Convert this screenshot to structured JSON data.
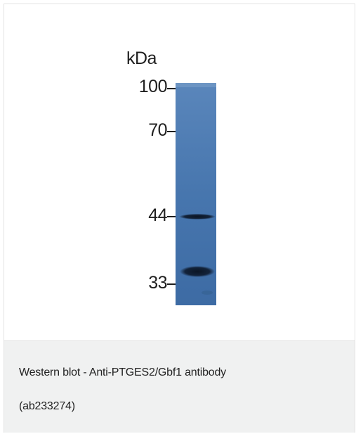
{
  "figure": {
    "unit_label": "kDa",
    "markers": [
      {
        "label": "100",
        "kda": 100
      },
      {
        "label": "70",
        "kda": 70
      },
      {
        "label": "44",
        "kda": 44
      },
      {
        "label": "33",
        "kda": 33
      }
    ],
    "bands_kda": [
      44,
      35
    ],
    "lane_color": "#3f6fa8",
    "band_color": "#0e1a2c"
  },
  "caption": {
    "line1": "Western blot - Anti-PTGES2/Gbf1 antibody",
    "line2": "(ab233274)"
  }
}
